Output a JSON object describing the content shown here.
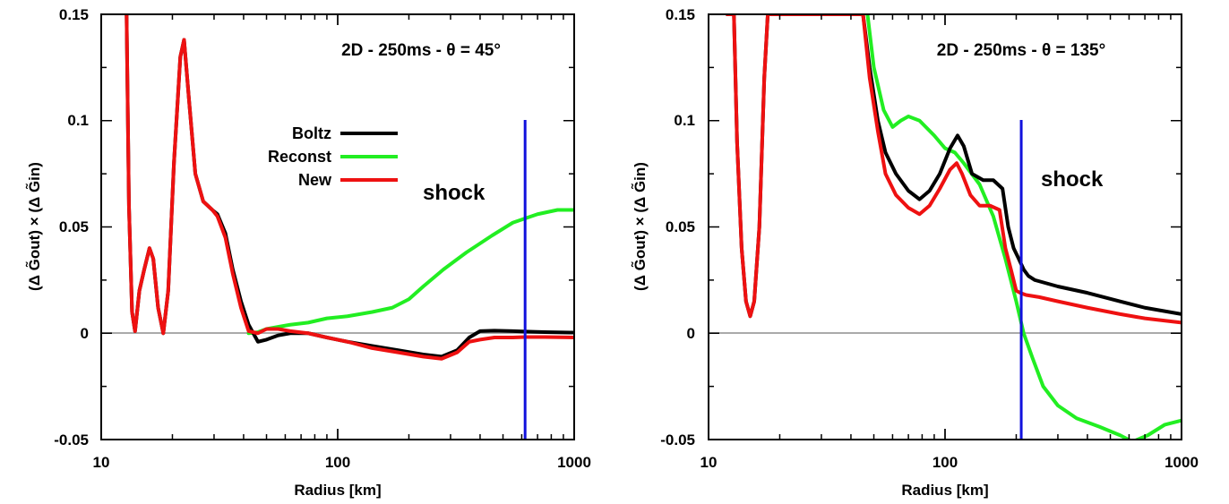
{
  "chart_data": [
    {
      "type": "line",
      "title": "2D - 250ms - θ = 45°",
      "xlabel": "Radius [km]",
      "ylabel": "(Δ G̃out) × (Δ G̃in)",
      "xscale": "log",
      "xlim": [
        10,
        1000
      ],
      "ylim": [
        -0.05,
        0.15
      ],
      "xticks": [
        "10",
        "100",
        "1000"
      ],
      "yticks": [
        "-0.05",
        "0",
        "0.05",
        "0.1",
        "0.15"
      ],
      "grid": false,
      "zero_line": true,
      "legend_position": "upper-middle",
      "annotation": "shock",
      "shock_radius": 620,
      "series": [
        {
          "name": "Boltz",
          "color": "#000000",
          "x": [
            12.8,
            13.1,
            13.5,
            13.9,
            14.5,
            15.2,
            16.0,
            16.6,
            17.4,
            18.3,
            19.2,
            20.3,
            21.6,
            22.4,
            23.5,
            25.0,
            27.0,
            29.5,
            31.0,
            33.5,
            36.0,
            39.0,
            42.0,
            46.0,
            50.0,
            56.0,
            63.0,
            75.0,
            90.0,
            110.0,
            140.0,
            180.0,
            230.0,
            275.0,
            320.0,
            360.0,
            400.0,
            460.0,
            550.0,
            620.0,
            750.0,
            1000.0
          ],
          "y": [
            0.15,
            0.06,
            0.01,
            0.001,
            0.02,
            0.03,
            0.04,
            0.035,
            0.012,
            0.0,
            0.02,
            0.08,
            0.13,
            0.138,
            0.11,
            0.075,
            0.062,
            0.058,
            0.056,
            0.047,
            0.03,
            0.015,
            0.004,
            -0.004,
            -0.003,
            -0.001,
            0.0,
            0.0,
            -0.002,
            -0.004,
            -0.006,
            -0.008,
            -0.01,
            -0.011,
            -0.008,
            -0.002,
            0.001,
            0.0012,
            0.001,
            0.0008,
            0.0005,
            0.0003
          ]
        },
        {
          "name": "Reconst",
          "color": "#22ee22",
          "x": [
            42.0,
            46.0,
            50.0,
            56.0,
            63.0,
            75.0,
            90.0,
            110.0,
            140.0,
            170.0,
            200.0,
            230.0,
            280.0,
            350.0,
            450.0,
            550.0,
            620.0,
            700.0,
            850.0,
            1000.0
          ],
          "y": [
            0.0,
            0.0005,
            0.002,
            0.003,
            0.004,
            0.005,
            0.007,
            0.008,
            0.01,
            0.012,
            0.016,
            0.022,
            0.03,
            0.038,
            0.046,
            0.052,
            0.054,
            0.056,
            0.058,
            0.058
          ]
        },
        {
          "name": "New",
          "color": "#ee1111",
          "x": [
            12.8,
            13.1,
            13.5,
            13.9,
            14.5,
            15.2,
            16.0,
            16.6,
            17.4,
            18.3,
            19.2,
            20.3,
            21.6,
            22.4,
            23.5,
            25.0,
            27.0,
            29.5,
            31.0,
            33.5,
            36.0,
            39.0,
            42.0,
            46.0,
            50.0,
            56.0,
            63.0,
            75.0,
            90.0,
            110.0,
            140.0,
            180.0,
            230.0,
            275.0,
            320.0,
            360.0,
            400.0,
            460.0,
            550.0,
            620.0,
            750.0,
            1000.0
          ],
          "y": [
            0.15,
            0.06,
            0.01,
            0.001,
            0.02,
            0.03,
            0.04,
            0.035,
            0.012,
            0.0,
            0.02,
            0.08,
            0.13,
            0.138,
            0.11,
            0.075,
            0.062,
            0.058,
            0.055,
            0.045,
            0.028,
            0.012,
            0.001,
            0.0,
            0.002,
            0.002,
            0.001,
            0.0,
            -0.002,
            -0.004,
            -0.007,
            -0.009,
            -0.011,
            -0.012,
            -0.009,
            -0.004,
            -0.003,
            -0.002,
            -0.002,
            -0.0018,
            -0.0018,
            -0.002
          ]
        }
      ]
    },
    {
      "type": "line",
      "title": "2D - 250ms - θ = 135°",
      "xlabel": "Radius [km]",
      "ylabel": "(Δ G̃out) × (Δ G̃in)",
      "xscale": "log",
      "xlim": [
        10,
        1000
      ],
      "ylim": [
        -0.05,
        0.15
      ],
      "xticks": [
        "10",
        "100",
        "1000"
      ],
      "yticks": [
        "-0.05",
        "0",
        "0.05",
        "0.1",
        "0.15"
      ],
      "grid": false,
      "zero_line": true,
      "annotation": "shock",
      "shock_radius": 210,
      "series": [
        {
          "name": "Boltz",
          "color": "#000000",
          "x": [
            12.0,
            12.8,
            13.2,
            13.8,
            14.4,
            15.0,
            15.6,
            16.4,
            17.2,
            17.8,
            45.0,
            48.0,
            52.0,
            56.0,
            62.0,
            70.0,
            78.0,
            86.0,
            95.0,
            105.0,
            113.0,
            120.0,
            130.0,
            145.0,
            160.0,
            175.0,
            185.0,
            195.0,
            205.0,
            215.0,
            225.0,
            240.0,
            300.0,
            400.0,
            550.0,
            700.0,
            1000.0
          ],
          "y": [
            0.15,
            0.15,
            0.09,
            0.04,
            0.015,
            0.008,
            0.015,
            0.05,
            0.12,
            0.15,
            0.15,
            0.125,
            0.1,
            0.085,
            0.075,
            0.067,
            0.063,
            0.067,
            0.075,
            0.087,
            0.093,
            0.088,
            0.075,
            0.072,
            0.072,
            0.068,
            0.05,
            0.04,
            0.035,
            0.03,
            0.027,
            0.025,
            0.022,
            0.019,
            0.015,
            0.012,
            0.009
          ]
        },
        {
          "name": "Reconst",
          "color": "#22ee22",
          "x": [
            47.0,
            50.0,
            55.0,
            60.0,
            65.0,
            70.0,
            78.0,
            90.0,
            100.0,
            110.0,
            120.0,
            140.0,
            160.0,
            180.0,
            200.0,
            215.0,
            235.0,
            260.0,
            300.0,
            360.0,
            450.0,
            550.0,
            620.0,
            720.0,
            850.0,
            1000.0
          ],
          "y": [
            0.15,
            0.125,
            0.105,
            0.097,
            0.1,
            0.102,
            0.1,
            0.093,
            0.087,
            0.085,
            0.08,
            0.07,
            0.055,
            0.035,
            0.015,
            0.0,
            -0.012,
            -0.025,
            -0.034,
            -0.04,
            -0.044,
            -0.048,
            -0.051,
            -0.048,
            -0.043,
            -0.041
          ]
        },
        {
          "name": "New",
          "color": "#ee1111",
          "x": [
            12.0,
            12.8,
            13.2,
            13.8,
            14.4,
            15.0,
            15.6,
            16.4,
            17.2,
            17.8,
            45.0,
            48.0,
            52.0,
            56.0,
            62.0,
            70.0,
            78.0,
            86.0,
            95.0,
            105.0,
            112.0,
            118.0,
            128.0,
            140.0,
            155.0,
            170.0,
            180.0,
            190.0,
            200.0,
            208.0,
            220.0,
            250.0,
            300.0,
            400.0,
            550.0,
            700.0,
            1000.0
          ],
          "y": [
            0.15,
            0.15,
            0.09,
            0.04,
            0.015,
            0.008,
            0.015,
            0.05,
            0.12,
            0.15,
            0.15,
            0.12,
            0.095,
            0.075,
            0.065,
            0.059,
            0.056,
            0.06,
            0.068,
            0.077,
            0.08,
            0.075,
            0.065,
            0.06,
            0.06,
            0.058,
            0.04,
            0.03,
            0.02,
            0.019,
            0.018,
            0.017,
            0.015,
            0.012,
            0.009,
            0.007,
            0.005
          ]
        }
      ]
    }
  ]
}
